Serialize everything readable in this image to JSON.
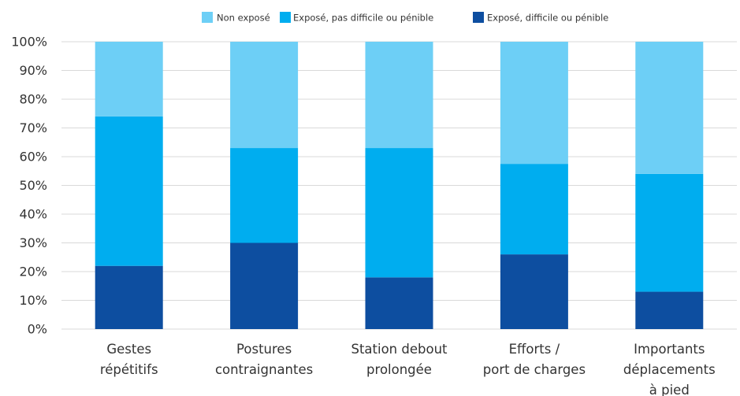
{
  "chart_data": {
    "type": "bar",
    "stacked": true,
    "categories": [
      [
        "Gestes",
        "répétitifs"
      ],
      [
        "Postures",
        "contraignantes"
      ],
      [
        "Station debout",
        "prolongée"
      ],
      [
        "Efforts /",
        "port de charges"
      ],
      [
        "Importants",
        "déplacements",
        "à pied"
      ]
    ],
    "series": [
      {
        "name": "Exposé, difficile ou pénible",
        "color": "#0d4ea0",
        "values": [
          22,
          30,
          18,
          26,
          13
        ]
      },
      {
        "name": "Exposé, pas difficile ou pénible",
        "color": "#00adef",
        "values": [
          52,
          33,
          45,
          31.5,
          41
        ]
      },
      {
        "name": "Non exposé",
        "color": "#6dcff6",
        "values": [
          26,
          37,
          37,
          42.5,
          46
        ]
      }
    ],
    "legend_order": [
      2,
      1,
      0
    ],
    "legend_position": "top",
    "yticks": [
      "0%",
      "10%",
      "20%",
      "30%",
      "40%",
      "50%",
      "60%",
      "70%",
      "80%",
      "90%",
      "100%"
    ],
    "ylim": [
      0,
      100
    ],
    "grid": true
  }
}
